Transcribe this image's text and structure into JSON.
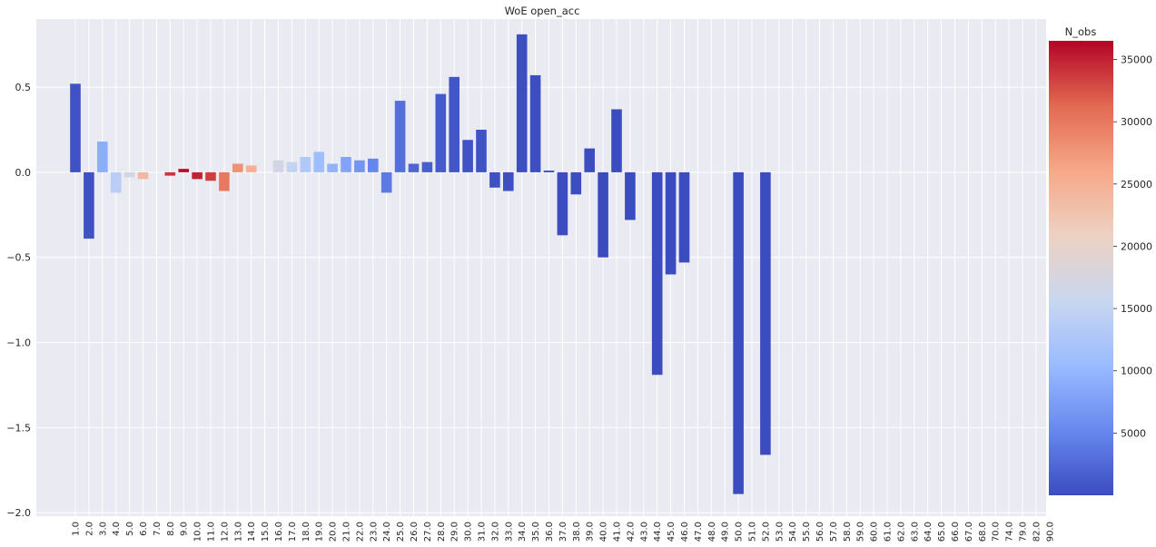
{
  "chart_data": {
    "type": "bar",
    "title": "WoE open_acc",
    "xlabel": "",
    "ylabel": "",
    "ylim": [
      -2.02,
      0.9
    ],
    "yticks": [
      0.5,
      0.0,
      -0.5,
      -1.0,
      -1.5,
      -2.0
    ],
    "ytick_labels": [
      "0.5",
      "0.0",
      "−0.5",
      "−1.0",
      "−1.5",
      "−2.0"
    ],
    "grid": true,
    "colormap": "coolwarm",
    "colormap_stops": [
      "#3b4cc0",
      "#6788ee",
      "#9abbff",
      "#c9d7f0",
      "#edd1c2",
      "#f7a889",
      "#e26952",
      "#b40426"
    ],
    "categories": [
      "1.0",
      "2.0",
      "3.0",
      "4.0",
      "5.0",
      "6.0",
      "7.0",
      "8.0",
      "9.0",
      "10.0",
      "11.0",
      "12.0",
      "13.0",
      "14.0",
      "15.0",
      "16.0",
      "17.0",
      "18.0",
      "19.0",
      "20.0",
      "21.0",
      "22.0",
      "23.0",
      "24.0",
      "25.0",
      "26.0",
      "27.0",
      "28.0",
      "29.0",
      "30.0",
      "31.0",
      "32.0",
      "33.0",
      "34.0",
      "35.0",
      "36.0",
      "37.0",
      "38.0",
      "39.0",
      "40.0",
      "41.0",
      "42.0",
      "43.0",
      "44.0",
      "45.0",
      "46.0",
      "47.0",
      "48.0",
      "49.0",
      "50.0",
      "51.0",
      "52.0",
      "53.0",
      "54.0",
      "55.0",
      "56.0",
      "57.0",
      "58.0",
      "59.0",
      "60.0",
      "61.0",
      "62.0",
      "63.0",
      "64.0",
      "65.0",
      "66.0",
      "67.0",
      "68.0",
      "70.0",
      "74.0",
      "79.0",
      "82.0",
      "90.0"
    ],
    "values": [
      0.52,
      -0.39,
      0.18,
      -0.12,
      -0.03,
      -0.04,
      0.0,
      -0.02,
      0.02,
      -0.04,
      -0.05,
      -0.11,
      0.05,
      0.04,
      0.0,
      0.07,
      0.06,
      0.09,
      0.12,
      0.05,
      0.09,
      0.07,
      0.08,
      -0.12,
      0.42,
      0.05,
      0.06,
      0.46,
      0.56,
      0.19,
      0.25,
      -0.09,
      -0.11,
      0.81,
      0.57,
      0.01,
      -0.37,
      -0.13,
      0.14,
      -0.5,
      0.37,
      -0.28,
      0.0,
      -1.19,
      -0.6,
      -0.53,
      0.0,
      0.0,
      0.0,
      -1.89,
      0.0,
      -1.66,
      0.0,
      0.0,
      0.0,
      0.0,
      0.0,
      0.0,
      0.0,
      0.0,
      0.0,
      0.0,
      0.0,
      0.0,
      0.0,
      0.0,
      0.0,
      0.0,
      0.0,
      0.0,
      0.0,
      0.0,
      0.0
    ],
    "n_obs": [
      450,
      500,
      9000,
      14000,
      17000,
      24000,
      4000,
      34000,
      36000,
      35000,
      33500,
      30000,
      28000,
      25000,
      20000,
      17000,
      15000,
      13000,
      11000,
      9500,
      8000,
      6500,
      5000,
      4000,
      3000,
      2200,
      1600,
      1200,
      900,
      650,
      500,
      380,
      290,
      210,
      160,
      120,
      90,
      70,
      50,
      40,
      30,
      20,
      15,
      10,
      8,
      6,
      5,
      4,
      3,
      3,
      2,
      2,
      1,
      1,
      1,
      1,
      1,
      1,
      1,
      1,
      1,
      1,
      1,
      1,
      1,
      1,
      1,
      1,
      1,
      1,
      1,
      1,
      1
    ],
    "colorbar": {
      "title": "N_obs",
      "min": 0,
      "max": 36500,
      "ticks": [
        5000,
        10000,
        15000,
        20000,
        25000,
        30000,
        35000
      ],
      "tick_labels": [
        "5000",
        "10000",
        "15000",
        "20000",
        "25000",
        "30000",
        "35000"
      ]
    }
  }
}
